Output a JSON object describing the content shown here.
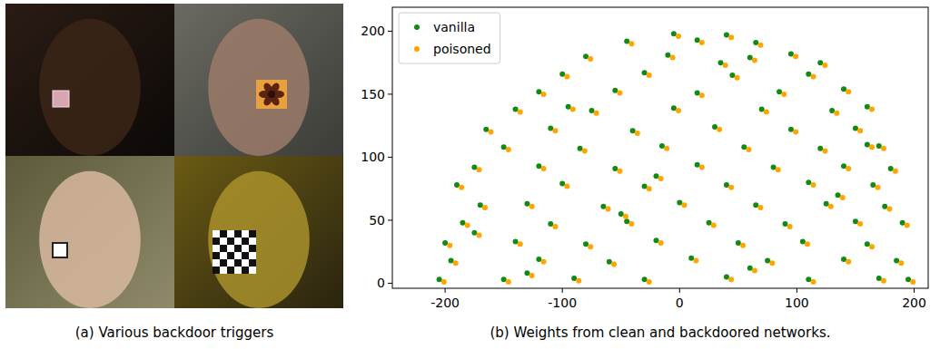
{
  "figure": {
    "panel_a": {
      "caption": "(a) Various backdoor triggers"
    }
  },
  "chart_data": {
    "type": "scatter",
    "caption": "(b) Weights from clean and backdoored networks.",
    "xlim": [
      -245,
      212
    ],
    "ylim": [
      -4,
      219
    ],
    "xticks": [
      -200,
      -100,
      0,
      100,
      200
    ],
    "yticks": [
      0,
      50,
      100,
      150,
      200
    ],
    "grid": false,
    "legend": "upper left",
    "marker": "circle",
    "series": [
      {
        "name": "vanilla",
        "color": "#138a13",
        "x": [
          -205,
          -150,
          -90,
          -30,
          40,
          110,
          170,
          195,
          -195,
          -120,
          -60,
          10,
          75,
          140,
          185,
          -200,
          -140,
          -80,
          -20,
          50,
          105,
          160,
          -185,
          -110,
          -45,
          25,
          90,
          150,
          190,
          -170,
          -130,
          -65,
          0,
          65,
          125,
          175,
          -190,
          -100,
          -30,
          40,
          110,
          165,
          -175,
          -120,
          -55,
          15,
          80,
          140,
          180,
          -150,
          -85,
          -15,
          55,
          120,
          170,
          -165,
          -110,
          -40,
          30,
          95,
          150,
          -140,
          -75,
          -5,
          70,
          130,
          160,
          -120,
          -55,
          15,
          85,
          140,
          -100,
          -30,
          45,
          110,
          -80,
          -10,
          60,
          95,
          -45,
          15,
          65,
          -5,
          40,
          -130,
          60,
          -50,
          135,
          -95,
          35,
          120,
          -175,
          160,
          -20
        ],
        "values": [
          3,
          3,
          4,
          3,
          5,
          3,
          4,
          3,
          18,
          19,
          17,
          20,
          18,
          19,
          18,
          32,
          33,
          31,
          34,
          32,
          33,
          31,
          48,
          47,
          49,
          48,
          47,
          49,
          48,
          62,
          63,
          61,
          64,
          62,
          63,
          61,
          78,
          79,
          77,
          78,
          80,
          78,
          92,
          93,
          91,
          94,
          92,
          93,
          91,
          108,
          107,
          109,
          108,
          107,
          109,
          122,
          123,
          121,
          124,
          122,
          123,
          138,
          137,
          139,
          138,
          137,
          140,
          152,
          153,
          151,
          152,
          154,
          166,
          167,
          165,
          166,
          180,
          181,
          179,
          182,
          192,
          193,
          191,
          198,
          197,
          8,
          12,
          55,
          70,
          140,
          175,
          175,
          40,
          110,
          85
        ]
      },
      {
        "name": "poisoned",
        "color": "#ffa500",
        "x": [
          -201,
          -146,
          -86,
          -26,
          44,
          114,
          174,
          199,
          -191,
          -116,
          -56,
          14,
          79,
          144,
          189,
          -196,
          -136,
          -76,
          -16,
          54,
          109,
          164,
          -181,
          -106,
          -41,
          29,
          94,
          154,
          194,
          -166,
          -126,
          -61,
          4,
          69,
          129,
          179,
          -186,
          -96,
          -26,
          44,
          114,
          169,
          -171,
          -116,
          -51,
          19,
          84,
          144,
          184,
          -146,
          -81,
          -11,
          59,
          124,
          174,
          -161,
          -106,
          -36,
          34,
          99,
          154,
          -136,
          -71,
          -1,
          74,
          134,
          164,
          -116,
          -51,
          19,
          89,
          144,
          -96,
          -26,
          49,
          114,
          -76,
          -6,
          64,
          99,
          -41,
          19,
          69,
          -1,
          44,
          -126,
          64,
          -46,
          139,
          -91,
          39,
          124,
          -171,
          164,
          -16
        ],
        "values": [
          1,
          1,
          2,
          1,
          3,
          1,
          2,
          1,
          16,
          17,
          15,
          18,
          16,
          17,
          16,
          30,
          31,
          29,
          32,
          30,
          31,
          29,
          46,
          45,
          47,
          46,
          45,
          47,
          46,
          60,
          61,
          59,
          62,
          60,
          61,
          59,
          76,
          77,
          75,
          76,
          78,
          76,
          90,
          91,
          89,
          92,
          90,
          91,
          89,
          106,
          105,
          107,
          106,
          105,
          107,
          120,
          121,
          119,
          122,
          120,
          121,
          136,
          135,
          137,
          136,
          135,
          138,
          150,
          151,
          149,
          150,
          152,
          164,
          165,
          163,
          164,
          178,
          179,
          177,
          180,
          190,
          191,
          189,
          196,
          195,
          6,
          10,
          53,
          68,
          138,
          173,
          173,
          38,
          108,
          83
        ]
      }
    ]
  }
}
